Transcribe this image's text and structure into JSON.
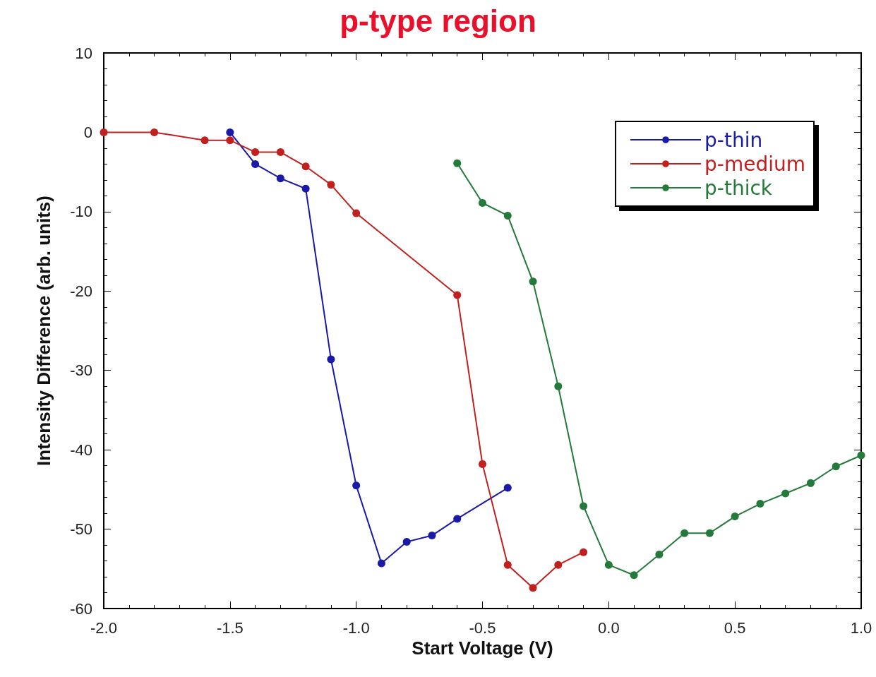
{
  "chart_data": {
    "type": "line",
    "title": "p-type region",
    "xlabel": "Start Voltage (V)",
    "ylabel": "Intensity Difference (arb. units)",
    "xlim": [
      -2.0,
      1.0
    ],
    "xticks": [
      {
        "value": -2,
        "label": "-2.0"
      },
      -1.5,
      {
        "value": -1,
        "label": "-1.0"
      },
      -0.5,
      {
        "value": 0,
        "label": "0.0"
      },
      0.5,
      {
        "value": 1,
        "label": "1.0"
      }
    ],
    "ylim": [
      -60,
      10
    ],
    "yticks": [
      -60,
      -50,
      -40,
      -30,
      -20,
      -10,
      0,
      10
    ],
    "grid": false,
    "legend": "top right",
    "marker": "circle",
    "line_style": "solid",
    "series": [
      {
        "name": "p-thin",
        "color": "#1a1aa8",
        "x": [
          -1.5,
          -1.4,
          -1.3,
          -1.2,
          -1.1,
          -1.0,
          -0.9,
          -0.8,
          -0.7,
          -0.6,
          -0.4
        ],
        "values": [
          0,
          -4.0,
          -5.8,
          -7.1,
          -28.6,
          -44.5,
          -54.3,
          -51.6,
          -50.8,
          -48.7,
          -44.8
        ]
      },
      {
        "name": "p-medium",
        "color": "#c0201e",
        "x": [
          -2.0,
          -1.8,
          -1.6,
          -1.5,
          -1.4,
          -1.3,
          -1.2,
          -1.1,
          -1.0,
          -0.6,
          -0.5,
          -0.4,
          -0.3,
          -0.2,
          -0.1
        ],
        "values": [
          0,
          0,
          -1.0,
          -1.0,
          -2.5,
          -2.5,
          -4.3,
          -6.6,
          -10.2,
          -20.5,
          -41.8,
          -54.5,
          -57.4,
          -54.5,
          -52.9
        ]
      },
      {
        "name": "p-thick",
        "color": "#237a3a",
        "x": [
          -0.6,
          -0.5,
          -0.4,
          -0.3,
          -0.2,
          -0.1,
          0.0,
          0.1,
          0.2,
          0.3,
          0.4,
          0.5,
          0.6,
          0.7,
          0.8,
          0.9,
          1.0
        ],
        "values": [
          -3.9,
          -8.9,
          -10.5,
          -18.8,
          -32.0,
          -47.1,
          -54.5,
          -55.8,
          -53.2,
          -50.5,
          -50.5,
          -48.4,
          -46.8,
          -45.5,
          -44.2,
          -42.1,
          -40.7
        ]
      }
    ]
  }
}
